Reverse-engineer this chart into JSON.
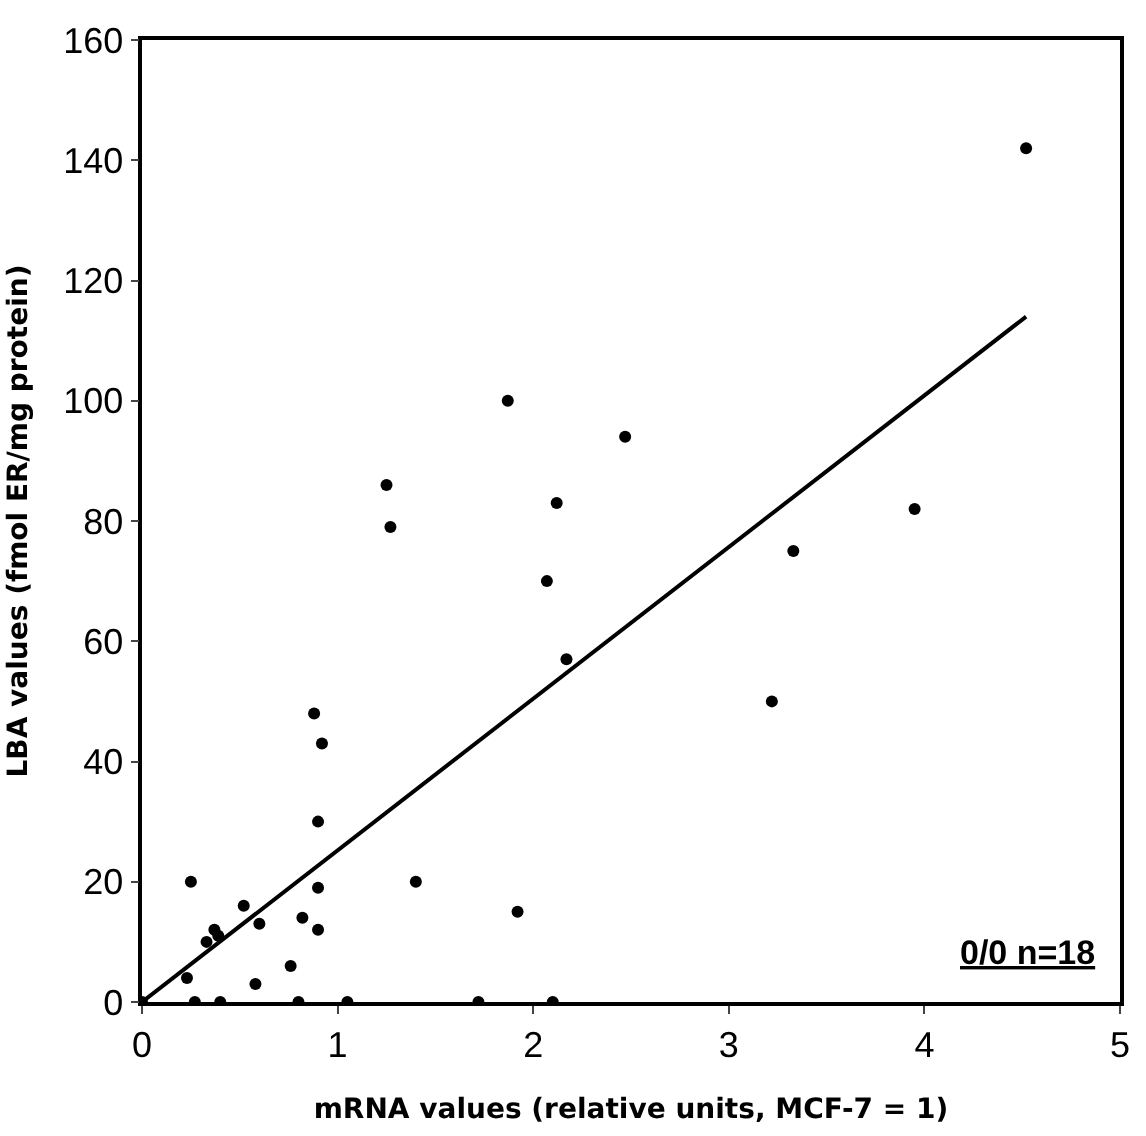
{
  "chart_data": {
    "type": "scatter",
    "xlabel": "mRNA values (relative units, MCF-7 = 1)",
    "ylabel": "LBA values (fmol ER/mg protein)",
    "xlim": [
      0,
      5
    ],
    "xticks": [
      0,
      1,
      2,
      3,
      4,
      5
    ],
    "ylim": [
      0,
      160
    ],
    "yticks": [
      0,
      20,
      40,
      60,
      80,
      100,
      120,
      140,
      160
    ],
    "grid": false,
    "series": [
      {
        "marker": "circle",
        "color": "#000000",
        "x": [
          0,
          0.23,
          0.25,
          0.27,
          0.33,
          0.37,
          0.39,
          0.4,
          0.52,
          0.58,
          0.6,
          0.76,
          0.8,
          0.82,
          0.88,
          0.9,
          0.9,
          0.92,
          0.9,
          1.05,
          1.25,
          1.27,
          1.4,
          1.72,
          1.87,
          1.92,
          2.07,
          2.1,
          2.12,
          2.17,
          2.47,
          3.22,
          3.33,
          3.95,
          4.52
        ],
        "values": [
          0,
          4,
          20,
          0,
          10,
          12,
          11,
          0,
          16,
          3,
          13,
          6,
          0,
          14,
          48,
          19,
          12,
          43,
          30,
          0,
          86,
          79,
          20,
          0,
          100,
          15,
          70,
          0,
          83,
          57,
          94,
          50,
          75,
          82,
          142
        ]
      },
      {
        "type": "line",
        "color": "#000000",
        "line_style": "solid",
        "x": [
          0,
          4.52
        ],
        "values": [
          0,
          114
        ]
      }
    ],
    "annotations": [
      "0/0 n=18"
    ]
  }
}
